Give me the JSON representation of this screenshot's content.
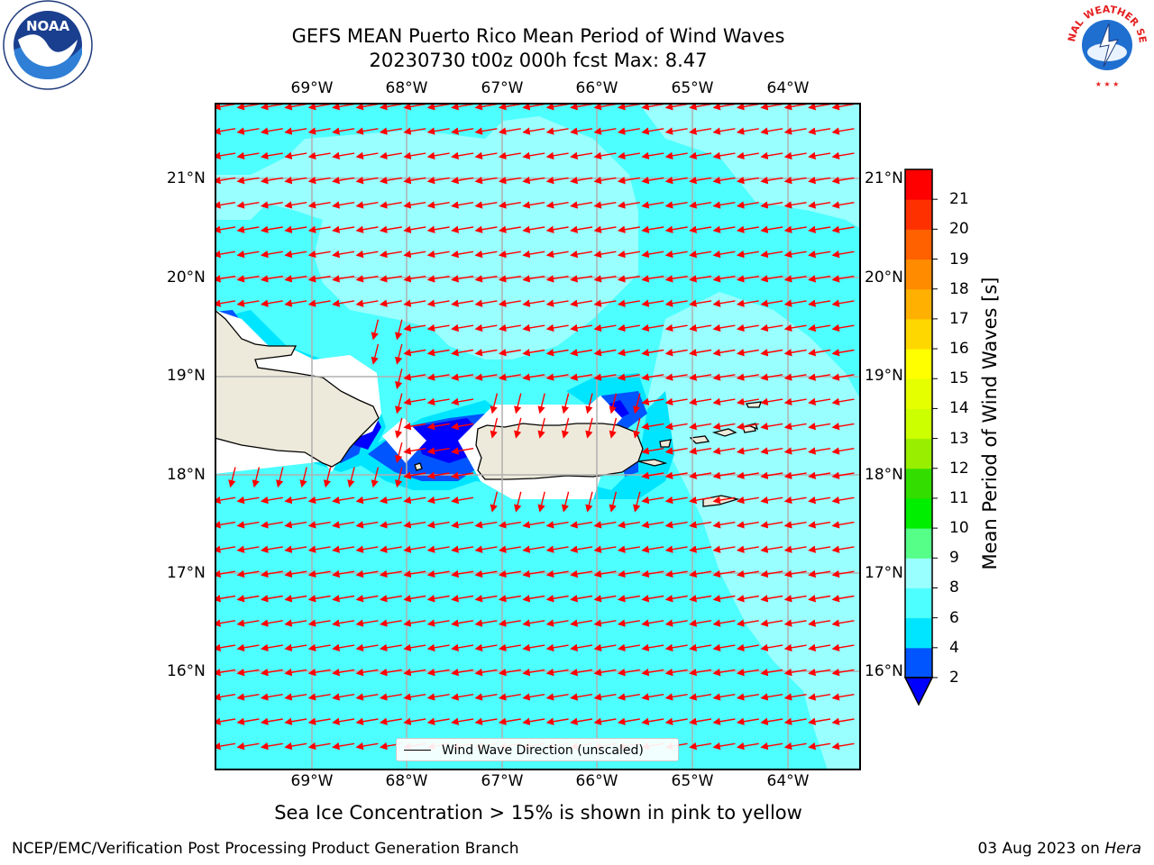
{
  "title": {
    "line1": "GEFS MEAN Puerto Rico Mean Period of Wind Waves",
    "line2": "20230730 t00z 000h fcst   Max: 8.47"
  },
  "map": {
    "lon_labels": [
      "69°W",
      "68°W",
      "67°W",
      "66°W",
      "65°W",
      "64°W"
    ],
    "lat_labels": [
      "21°N",
      "20°N",
      "19°N",
      "18°N",
      "17°N",
      "16°N"
    ],
    "legend_label": "Wind Wave Direction (unscaled)",
    "arrow_color": "#ff0000",
    "land_color": "#eeeadb",
    "ocean_base_color": "#4dffff"
  },
  "colorbar": {
    "title": "Mean Period of Wind Waves [s]",
    "ticks": [
      "2",
      "4",
      "6",
      "8",
      "9",
      "10",
      "11",
      "12",
      "13",
      "14",
      "15",
      "16",
      "17",
      "18",
      "19",
      "20",
      "21"
    ],
    "colors": [
      "#0055ff",
      "#00e5ff",
      "#4dffff",
      "#99ffff",
      "#55ff88",
      "#00ee00",
      "#33dd00",
      "#99ee00",
      "#ccff00",
      "#e6ff00",
      "#ffff00",
      "#ffd700",
      "#ffb000",
      "#ff8c00",
      "#ff6000",
      "#ff3000",
      "#ff0000"
    ],
    "under_color": "#0000ff"
  },
  "subtitle": "Sea Ice Concentration > 15% is shown in pink to yellow",
  "footer": {
    "left": "NCEP/EMC/Verification Post Processing Product Generation Branch",
    "date": "03 Aug 2023 on ",
    "host": "Hera"
  },
  "logos": {
    "noaa_text": "NOAA",
    "nws_text": "NATIONAL WEATHER SERVICE"
  }
}
